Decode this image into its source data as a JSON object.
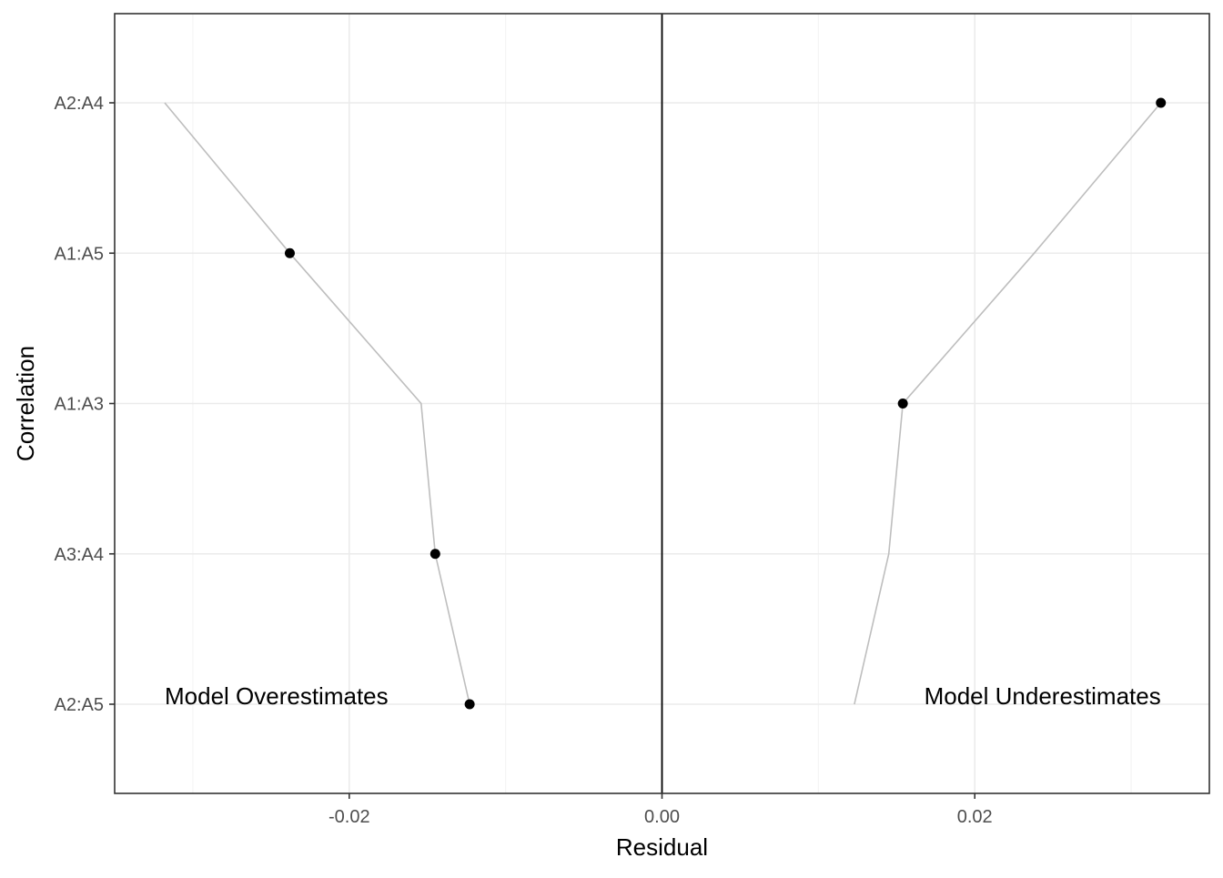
{
  "chart_data": {
    "type": "scatter",
    "title": "",
    "xlabel": "Residual",
    "ylabel": "Correlation",
    "xlim": [
      -0.035,
      0.035
    ],
    "x_ticks": [
      -0.02,
      0.0,
      0.02
    ],
    "x_tick_labels": [
      "-0.02",
      "0.00",
      "0.02"
    ],
    "categories": [
      "A2:A5",
      "A3:A4",
      "A1:A3",
      "A1:A5",
      "A2:A4"
    ],
    "points": [
      {
        "category": "A2:A4",
        "x": 0.0319
      },
      {
        "category": "A1:A5",
        "x": -0.0238
      },
      {
        "category": "A1:A3",
        "x": 0.0154
      },
      {
        "category": "A3:A4",
        "x": -0.0145
      },
      {
        "category": "A2:A5",
        "x": -0.0123
      }
    ],
    "reference_line_x": 0,
    "mirror_lines": [
      {
        "side": "negative",
        "points": [
          [
            -0.0318,
            "A2:A4"
          ],
          [
            -0.0238,
            "A1:A5"
          ],
          [
            -0.0154,
            "A1:A3"
          ],
          [
            -0.0145,
            "A3:A4"
          ],
          [
            -0.0123,
            "A2:A5"
          ]
        ]
      },
      {
        "side": "positive",
        "points": [
          [
            0.0319,
            "A2:A4"
          ],
          [
            0.0238,
            "A1:A5"
          ],
          [
            0.0154,
            "A1:A3"
          ],
          [
            0.0145,
            "A3:A4"
          ],
          [
            0.0123,
            "A2:A5"
          ]
        ]
      }
    ],
    "annotations": [
      {
        "text": "Model Overestimates",
        "x": -0.0318,
        "y": "A2:A5",
        "anchor": "start"
      },
      {
        "text": "Model Underestimates",
        "x": 0.0319,
        "y": "A2:A5",
        "anchor": "end"
      }
    ],
    "grid": true
  }
}
